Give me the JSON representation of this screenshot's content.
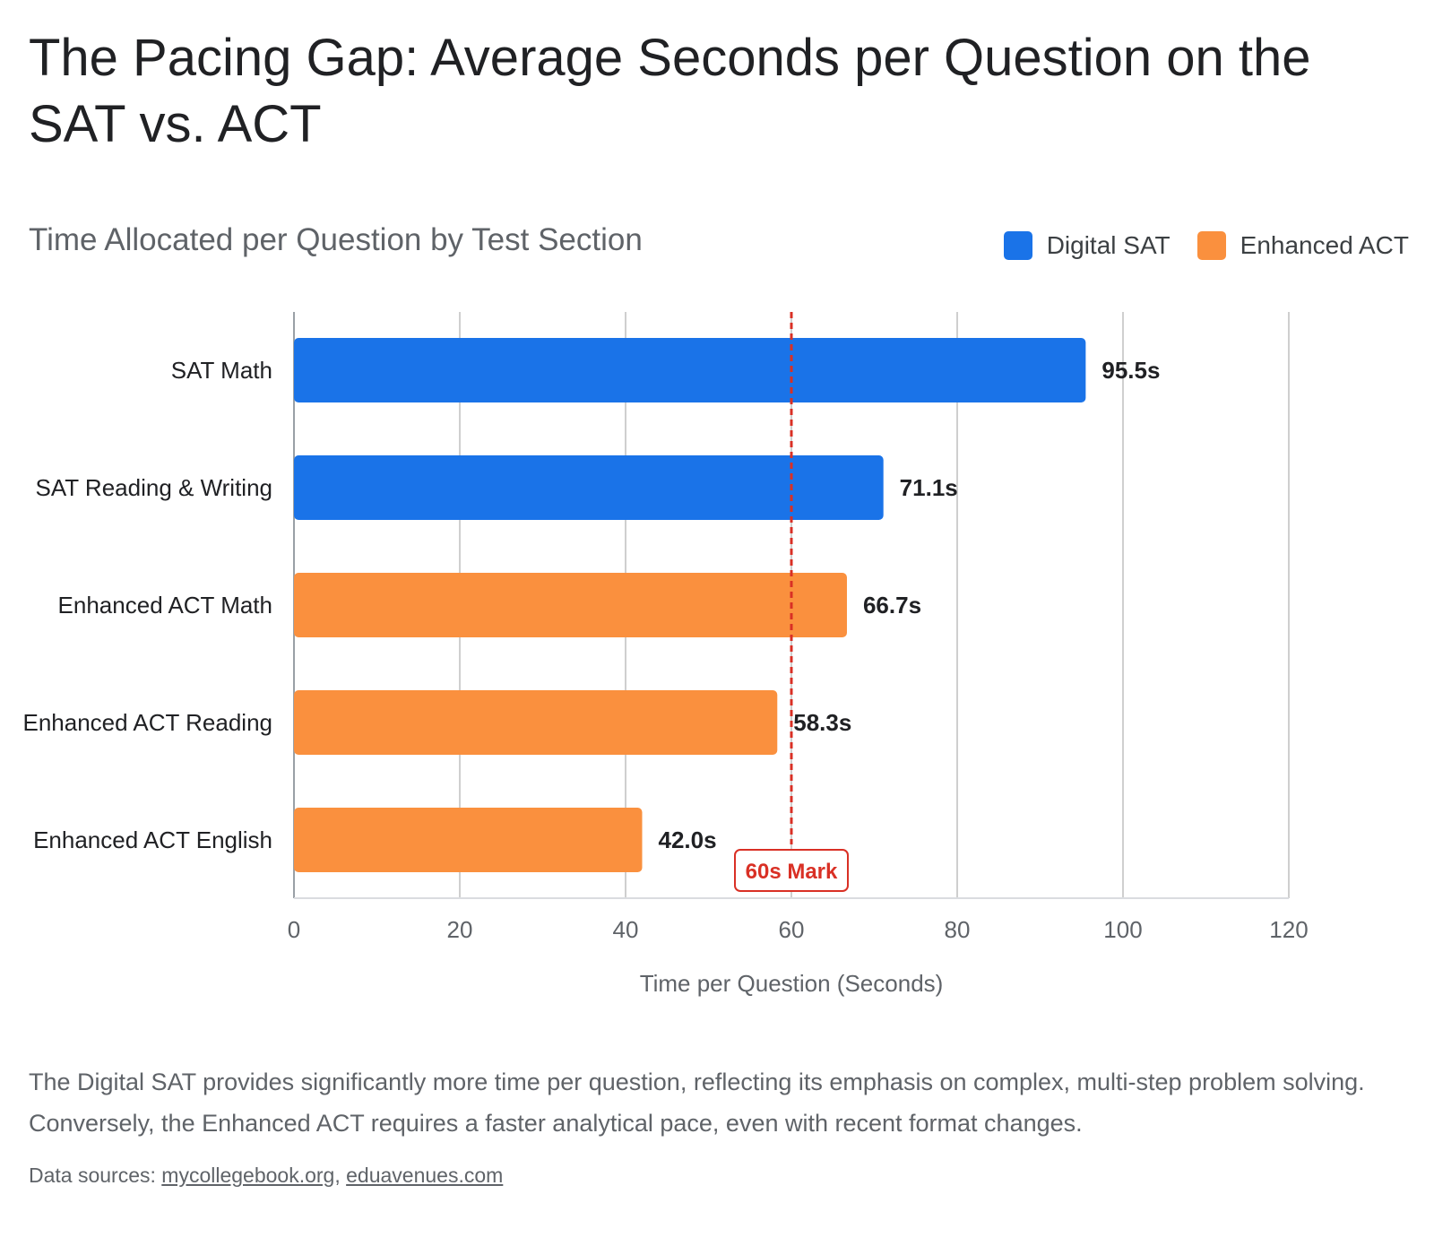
{
  "header": {
    "title": "The Pacing Gap: Average Seconds per Question on the SAT vs. ACT"
  },
  "chart_data": {
    "type": "bar",
    "orientation": "horizontal",
    "title": "Time Allocated per Question by Test Section",
    "xlabel": "Time per Question (Seconds)",
    "ylabel": "",
    "xlim": [
      0,
      120
    ],
    "xticks": [
      0,
      20,
      40,
      60,
      80,
      100,
      120
    ],
    "grid": true,
    "legend_position": "top-right",
    "legend": [
      {
        "name": "Digital SAT",
        "color": "#1a73e8"
      },
      {
        "name": "Enhanced ACT",
        "color": "#fa903e"
      }
    ],
    "bars": [
      {
        "category": "SAT Math",
        "value": 95.5,
        "label": "95.5s",
        "series": "Digital SAT"
      },
      {
        "category": "SAT Reading & Writing",
        "value": 71.1,
        "label": "71.1s",
        "series": "Digital SAT"
      },
      {
        "category": "Enhanced ACT Math",
        "value": 66.7,
        "label": "66.7s",
        "series": "Enhanced ACT"
      },
      {
        "category": "Enhanced ACT Reading",
        "value": 58.3,
        "label": "58.3s",
        "series": "Enhanced ACT"
      },
      {
        "category": "Enhanced ACT English",
        "value": 42.0,
        "label": "42.0s",
        "series": "Enhanced ACT"
      }
    ],
    "reference_line": {
      "value": 60,
      "label": "60s Mark",
      "color": "#d93025"
    }
  },
  "caption": "The Digital SAT provides significantly more time per question, reflecting its emphasis on complex, multi-step problem solving. Conversely, the Enhanced ACT requires a faster analytical pace, even with recent format changes.",
  "sources": {
    "prefix": "Data sources: ",
    "links": [
      "mycollegebook.org",
      "eduavenues.com"
    ],
    "separator": ", "
  }
}
